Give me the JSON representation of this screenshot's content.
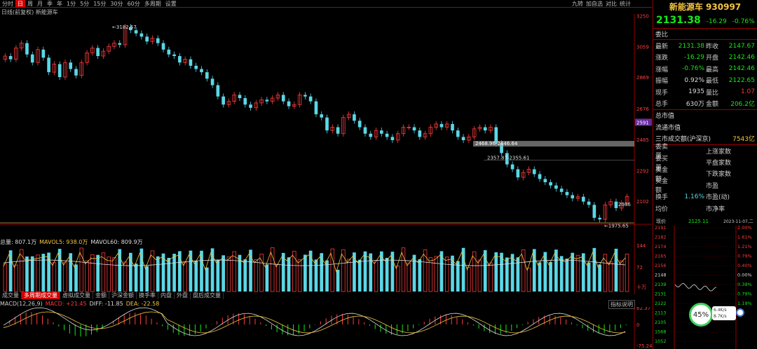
{
  "topbar": {
    "tabs": [
      "分时",
      "日",
      "周",
      "月",
      "季",
      "年",
      "1分",
      "5分",
      "15分",
      "30分",
      "60分",
      "多周期",
      "设置"
    ],
    "active": 1,
    "right": [
      "九转",
      "加自选",
      "对比",
      "统计"
    ]
  },
  "subtitle": "日线(前复权) 新能源车",
  "chart_data": {
    "type": "candlestick",
    "price_ticks": [
      "3250",
      "3059",
      "2869",
      "2676",
      "2485",
      "2292",
      "2102"
    ],
    "annotations": {
      "high": "3182.57",
      "low": "1975.65",
      "range1": "2468.96-2446.64",
      "range2": "2357.87-2355.61",
      "cur": "2086"
    },
    "highlight_price": "2591",
    "closes": [
      3000,
      2980,
      3050,
      3080,
      3010,
      2960,
      3040,
      2990,
      2900,
      2950,
      2870,
      2960,
      2920,
      2880,
      2960,
      3020,
      3050,
      3000,
      3030,
      3060,
      3080,
      3070,
      3180,
      3160,
      3140,
      3120,
      3090,
      3110,
      3080,
      3040,
      3010,
      3000,
      2960,
      2980,
      2940,
      2920,
      2900,
      2860,
      2820,
      2750,
      2700,
      2720,
      2760,
      2740,
      2700,
      2680,
      2710,
      2730,
      2720,
      2740,
      2760,
      2720,
      2690,
      2700,
      2760,
      2750,
      2720,
      2640,
      2620,
      2540,
      2560,
      2520,
      2620,
      2640,
      2600,
      2560,
      2520,
      2500,
      2540,
      2520,
      2500,
      2480,
      2520,
      2560,
      2560,
      2540,
      2500,
      2520,
      2560,
      2580,
      2560,
      2580,
      2540,
      2500,
      2480,
      2500,
      2550,
      2560,
      2540,
      2560,
      2460,
      2400,
      2330,
      2300,
      2250,
      2280,
      2300,
      2270,
      2240,
      2220,
      2200,
      2180,
      2160,
      2140,
      2120,
      2130,
      2100,
      2080,
      2000,
      1990,
      2080,
      2100,
      2060,
      2090,
      2131
    ],
    "volume_ticks": [
      "144",
      "72",
      "十万"
    ],
    "vol_series": [
      {
        "name": "总量",
        "value": "807.1万"
      },
      {
        "name": "MAVOL5",
        "value": "938.0万"
      },
      {
        "name": "MAVOL60",
        "value": "809.9万"
      }
    ],
    "macd_ticks": [
      "62.37",
      "0",
      "-75.24"
    ],
    "macd_series": [
      {
        "name": "MACD(12,26,9)",
        "value": ""
      },
      {
        "name": "MACD",
        "value": "+21.45"
      },
      {
        "name": "DIFF",
        "value": "-11.85"
      },
      {
        "name": "DEA",
        "value": "-22.58"
      }
    ]
  },
  "vol_tabs": [
    "成交量",
    "多周期成交量",
    "虚拟成交量",
    "金额",
    "沪深金额",
    "换手率",
    "内盘",
    "外盘",
    "盘后成交量"
  ],
  "vol_active": 1,
  "help": "指标说明",
  "quote": {
    "name": "新能源车",
    "code": "930997",
    "price": "2131.38",
    "chg": "-16.29",
    "pct": "-0.76%",
    "rows": [
      [
        "委比",
        "",
        "",
        ""
      ],
      [
        "最新",
        "2131.38",
        "昨收",
        "2147.67"
      ],
      [
        "涨跌",
        "-16.29",
        "开盘",
        "2142.46"
      ],
      [
        "涨幅",
        "-0.76%",
        "最高",
        "2142.46"
      ],
      [
        "振幅",
        "0.92%",
        "最低",
        "2122.65"
      ],
      [
        "现手",
        "1935",
        "量比",
        "1.07"
      ],
      [
        "总手",
        "630万",
        "金额",
        "206.2亿"
      ]
    ],
    "rows2": [
      [
        "总市值",
        ""
      ],
      [
        "流通市值",
        ""
      ],
      [
        "三市成交额(沪深京)",
        "7543亿"
      ]
    ],
    "rows3": [
      [
        "委卖量",
        "",
        "上涨家数",
        ""
      ],
      [
        "委买量",
        "",
        "平盘家数",
        ""
      ],
      [
        "卖金额",
        "",
        "下跌家数",
        ""
      ],
      [
        "买金额",
        "",
        "市盈",
        ""
      ],
      [
        "换手",
        "1.16%",
        "市盈(动)",
        ""
      ],
      [
        "均价",
        "",
        "市净率",
        ""
      ]
    ],
    "mini": {
      "label": "现价",
      "value": "2125.11",
      "date": "2023-11-07,二",
      "left": [
        "2191",
        "2182",
        "2174",
        "2165",
        "2156",
        "2148",
        "2139",
        "2131",
        "2122",
        "2113",
        "2105",
        "1568",
        "1052"
      ],
      "right": [
        "2.00%",
        "1.61%",
        "1.21%",
        "0.79%",
        "0.40%",
        "0.00%",
        "0.39%",
        "0.79%",
        "1.19%"
      ]
    }
  },
  "overlay": {
    "pct": "45%",
    "up": "6.4K/s",
    "down": "8.7K/s"
  }
}
